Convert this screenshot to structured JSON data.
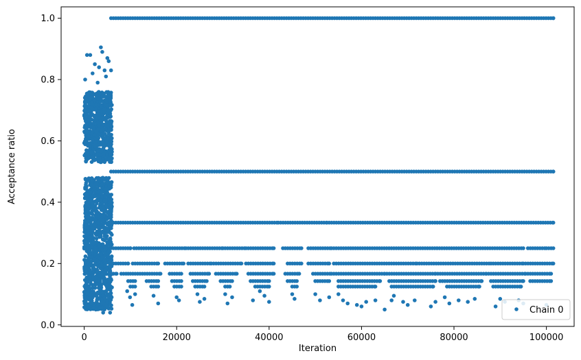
{
  "chart_data": {
    "type": "scatter",
    "title": "",
    "xlabel": "Iteration",
    "ylabel": "Acceptance ratio",
    "xlim": [
      -5000,
      106000
    ],
    "ylim": [
      -0.005,
      1.037
    ],
    "xticks": [
      0,
      20000,
      40000,
      60000,
      80000,
      100000
    ],
    "xtick_labels": [
      "0",
      "20000",
      "40000",
      "60000",
      "80000",
      "100000"
    ],
    "yticks": [
      0.0,
      0.2,
      0.4,
      0.6,
      0.8,
      1.0
    ],
    "ytick_labels": [
      "0.0",
      "0.2",
      "0.4",
      "0.6",
      "0.8",
      "1.0"
    ],
    "grid": false,
    "legend_position": "lower right",
    "series": [
      {
        "name": "Chain 0",
        "color": "#1f77b4",
        "marker": "dot",
        "burn_in": {
          "x_range": [
            0,
            6000
          ],
          "y_range": [
            0.04,
            0.9
          ],
          "dense_bands": [
            [
              0.05,
              0.48
            ],
            [
              0.53,
              0.76
            ]
          ],
          "sparse_points": [
            [
              600,
              0.88
            ],
            [
              1300,
              0.88
            ],
            [
              2300,
              0.85
            ],
            [
              3200,
              0.84
            ],
            [
              3600,
              0.905
            ],
            [
              3900,
              0.89
            ],
            [
              4400,
              0.83
            ],
            [
              5000,
              0.87
            ],
            [
              5300,
              0.86
            ],
            [
              5800,
              0.83
            ],
            [
              200,
              0.8
            ],
            [
              1800,
              0.82
            ],
            [
              4700,
              0.81
            ],
            [
              2900,
              0.79
            ],
            [
              900,
              0.06
            ],
            [
              2500,
              0.05
            ],
            [
              4100,
              0.04
            ],
            [
              5600,
              0.04
            ],
            [
              1500,
              0.07
            ]
          ]
        },
        "plateaus": [
          {
            "y": 1.0,
            "segments": [
              [
                5800,
                101500
              ]
            ]
          },
          {
            "y": 0.5,
            "segments": [
              [
                5800,
                101500
              ]
            ]
          },
          {
            "y": 0.3333,
            "segments": [
              [
                5800,
                42000
              ],
              [
                42500,
                52500
              ],
              [
                53000,
                101500
              ]
            ]
          },
          {
            "y": 0.25,
            "segments": [
              [
                5800,
                10000
              ],
              [
                10800,
                16500
              ],
              [
                17000,
                22000
              ],
              [
                22500,
                30000
              ],
              [
                30500,
                35000
              ],
              [
                35500,
                41000
              ],
              [
                43000,
                47000
              ],
              [
                48500,
                53500
              ],
              [
                54000,
                95000
              ],
              [
                96000,
                100000
              ],
              [
                100500,
                101500
              ]
            ]
          },
          {
            "y": 0.2,
            "segments": [
              [
                5800,
                9500
              ],
              [
                10500,
                16000
              ],
              [
                17500,
                21500
              ],
              [
                22500,
                27500
              ],
              [
                28000,
                34000
              ],
              [
                35000,
                41000
              ],
              [
                44000,
                47000
              ],
              [
                48500,
                53000
              ],
              [
                54000,
                72000
              ],
              [
                72500,
                88000
              ],
              [
                88500,
                95000
              ],
              [
                95500,
                101500
              ]
            ]
          },
          {
            "y": 0.1667,
            "segments": [
              [
                5800,
                7000
              ],
              [
                8000,
                9500
              ],
              [
                10000,
                16500
              ],
              [
                18500,
                21000
              ],
              [
                23000,
                27000
              ],
              [
                28500,
                33000
              ],
              [
                35500,
                41000
              ],
              [
                43500,
                46500
              ],
              [
                49500,
                53500
              ],
              [
                54000,
                65000
              ],
              [
                65500,
                76000
              ],
              [
                76500,
                87000
              ],
              [
                87500,
                95500
              ],
              [
                96000,
                101000
              ]
            ]
          },
          {
            "y": 0.1429,
            "segments": [
              [
                9500,
                11000
              ],
              [
                13500,
                16000
              ],
              [
                19000,
                21000
              ],
              [
                23500,
                26500
              ],
              [
                29500,
                32000
              ],
              [
                36000,
                40000
              ],
              [
                44000,
                46000
              ],
              [
                50000,
                53000
              ],
              [
                55000,
                64000
              ],
              [
                66000,
                76000
              ],
              [
                77000,
                86000
              ],
              [
                88000,
                95000
              ],
              [
                96500,
                101000
              ]
            ]
          },
          {
            "y": 0.125,
            "segments": [
              [
                10000,
                11000
              ],
              [
                14500,
                16000
              ],
              [
                19500,
                21000
              ],
              [
                24000,
                26000
              ],
              [
                30500,
                31500
              ],
              [
                37000,
                40000
              ],
              [
                45000,
                46000
              ],
              [
                55000,
                63000
              ],
              [
                66500,
                75500
              ],
              [
                78500,
                85500
              ],
              [
                88500,
                94500
              ]
            ]
          }
        ],
        "sparse_low_points": [
          [
            9300,
            0.11
          ],
          [
            9900,
            0.09
          ],
          [
            10400,
            0.065
          ],
          [
            11000,
            0.1
          ],
          [
            15000,
            0.095
          ],
          [
            16000,
            0.07
          ],
          [
            20000,
            0.09
          ],
          [
            20500,
            0.08
          ],
          [
            24500,
            0.1
          ],
          [
            25000,
            0.075
          ],
          [
            26000,
            0.085
          ],
          [
            30500,
            0.1
          ],
          [
            31000,
            0.07
          ],
          [
            32000,
            0.09
          ],
          [
            36500,
            0.08
          ],
          [
            38000,
            0.11
          ],
          [
            39000,
            0.095
          ],
          [
            40000,
            0.075
          ],
          [
            45000,
            0.1
          ],
          [
            45500,
            0.085
          ],
          [
            50000,
            0.1
          ],
          [
            51000,
            0.08
          ],
          [
            53000,
            0.09
          ],
          [
            55000,
            0.1
          ],
          [
            56000,
            0.08
          ],
          [
            57000,
            0.07
          ],
          [
            59000,
            0.065
          ],
          [
            60000,
            0.06
          ],
          [
            61000,
            0.075
          ],
          [
            63000,
            0.08
          ],
          [
            65000,
            0.05
          ],
          [
            66500,
            0.08
          ],
          [
            67000,
            0.095
          ],
          [
            69000,
            0.075
          ],
          [
            70000,
            0.065
          ],
          [
            71500,
            0.08
          ],
          [
            75000,
            0.06
          ],
          [
            76000,
            0.075
          ],
          [
            78000,
            0.09
          ],
          [
            79000,
            0.07
          ],
          [
            81000,
            0.08
          ],
          [
            83000,
            0.075
          ],
          [
            84500,
            0.085
          ],
          [
            89000,
            0.06
          ],
          [
            90000,
            0.085
          ],
          [
            91000,
            0.075
          ],
          [
            94000,
            0.08
          ],
          [
            95000,
            0.07
          ],
          [
            100000,
            0.065
          ]
        ]
      }
    ]
  }
}
